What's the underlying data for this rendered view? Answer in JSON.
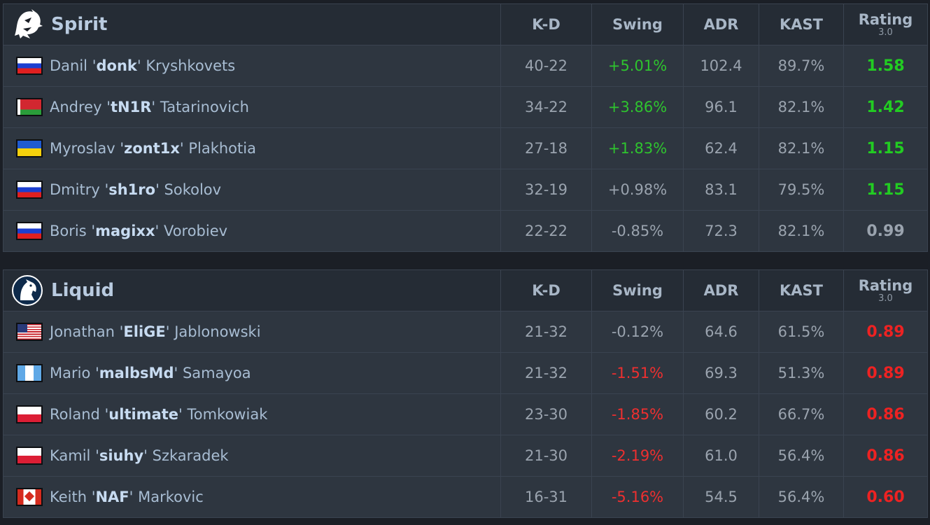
{
  "columns": {
    "kd": "K-D",
    "swing": "Swing",
    "adr": "ADR",
    "kast": "KAST",
    "rating": "Rating",
    "rating_version": "3.0"
  },
  "teams": [
    {
      "name": "Spirit",
      "logo_icon": "spirit-dragon-icon",
      "players": [
        {
          "first": "Danil",
          "nick": "donk",
          "last": "Kryshkovets",
          "flag": "russia-flag-icon",
          "kd": "40-22",
          "swing": "+5.01%",
          "adr": "102.4",
          "kast": "89.7%",
          "rating": "1.58"
        },
        {
          "first": "Andrey",
          "nick": "tN1R",
          "last": "Tatarinovich",
          "flag": "belarus-flag-icon",
          "kd": "34-22",
          "swing": "+3.86%",
          "adr": "96.1",
          "kast": "82.1%",
          "rating": "1.42"
        },
        {
          "first": "Myroslav",
          "nick": "zont1x",
          "last": "Plakhotia",
          "flag": "ukraine-flag-icon",
          "kd": "27-18",
          "swing": "+1.83%",
          "adr": "62.4",
          "kast": "82.1%",
          "rating": "1.15"
        },
        {
          "first": "Dmitry",
          "nick": "sh1ro",
          "last": "Sokolov",
          "flag": "russia-flag-icon",
          "kd": "32-19",
          "swing": "+0.98%",
          "adr": "83.1",
          "kast": "79.5%",
          "rating": "1.15"
        },
        {
          "first": "Boris",
          "nick": "magixx",
          "last": "Vorobiev",
          "flag": "russia-flag-icon",
          "kd": "22-22",
          "swing": "-0.85%",
          "adr": "72.3",
          "kast": "82.1%",
          "rating": "0.99"
        }
      ]
    },
    {
      "name": "Liquid",
      "logo_icon": "liquid-horse-icon",
      "players": [
        {
          "first": "Jonathan",
          "nick": "EliGE",
          "last": "Jablonowski",
          "flag": "usa-flag-icon",
          "kd": "21-32",
          "swing": "-0.12%",
          "adr": "64.6",
          "kast": "61.5%",
          "rating": "0.89"
        },
        {
          "first": "Mario",
          "nick": "malbsMd",
          "last": "Samayoa",
          "flag": "guatemala-flag-icon",
          "kd": "21-32",
          "swing": "-1.51%",
          "adr": "69.3",
          "kast": "51.3%",
          "rating": "0.89"
        },
        {
          "first": "Roland",
          "nick": "ultimate",
          "last": "Tomkowiak",
          "flag": "poland-flag-icon",
          "kd": "23-30",
          "swing": "-1.85%",
          "adr": "60.2",
          "kast": "66.7%",
          "rating": "0.86"
        },
        {
          "first": "Kamil",
          "nick": "siuhy",
          "last": "Szkaradek",
          "flag": "poland-flag-icon",
          "kd": "21-30",
          "swing": "-2.19%",
          "adr": "61.0",
          "kast": "56.4%",
          "rating": "0.86"
        },
        {
          "first": "Keith",
          "nick": "NAF",
          "last": "Markovic",
          "flag": "canada-flag-icon",
          "kd": "16-31",
          "swing": "-5.16%",
          "adr": "54.5",
          "kast": "56.4%",
          "rating": "0.60"
        }
      ]
    }
  ],
  "colors": {
    "positive": "#2ec42e",
    "negative": "#ee2f2f",
    "neutral": "#9aa3ae",
    "player_name": "#a8bdd3",
    "team_name": "#b9cbe0"
  }
}
